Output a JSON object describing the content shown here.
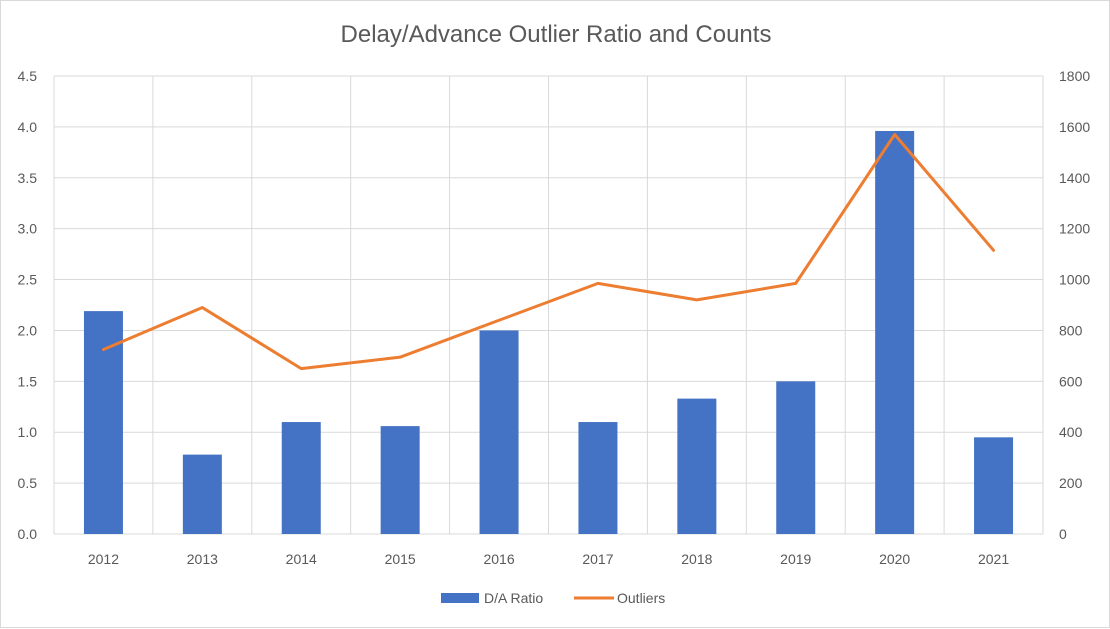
{
  "chart_data": {
    "type": "bar",
    "title": "Delay/Advance Outlier Ratio and Counts",
    "categories": [
      "2012",
      "2013",
      "2014",
      "2015",
      "2016",
      "2017",
      "2018",
      "2019",
      "2020",
      "2021"
    ],
    "series": [
      {
        "name": "D/A Ratio",
        "type": "bar",
        "axis": "left",
        "color": "#4472C4",
        "values": [
          2.19,
          0.78,
          1.1,
          1.06,
          2.0,
          1.1,
          1.33,
          1.5,
          3.96,
          0.95
        ]
      },
      {
        "name": "Outliers",
        "type": "line",
        "axis": "right",
        "color": "#ED7D31",
        "values": [
          725,
          890,
          650,
          695,
          840,
          985,
          920,
          985,
          1570,
          1115
        ]
      }
    ],
    "y_left": {
      "min": 0,
      "max": 4.5,
      "step": 0.5,
      "ticks": [
        "0.0",
        "0.5",
        "1.0",
        "1.5",
        "2.0",
        "2.5",
        "3.0",
        "3.5",
        "4.0",
        "4.5"
      ]
    },
    "y_right": {
      "min": 0,
      "max": 1800,
      "step": 200,
      "ticks": [
        "0",
        "200",
        "400",
        "600",
        "800",
        "1000",
        "1200",
        "1400",
        "1600",
        "1800"
      ]
    },
    "grid": true,
    "legend_position": "bottom"
  }
}
